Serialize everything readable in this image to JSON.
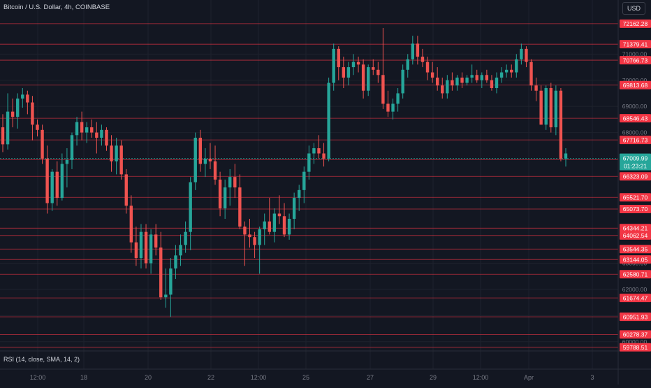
{
  "header": {
    "title": "Bitcoin / U.S. Dollar, 4h, COINBASE",
    "currency": "USD"
  },
  "rsi_label": "RSI (14, close, SMA, 14, 2)",
  "colors": {
    "background": "#131722",
    "up": "#26a69a",
    "down": "#ef5350",
    "level_line": "#f23645",
    "grid": "#1e222d",
    "axis_text": "#787b86"
  },
  "chart_data": {
    "type": "candlestick",
    "title": "Bitcoin / U.S. Dollar, 4h, COINBASE",
    "ylim": [
      59700,
      72400
    ],
    "y_ticks": [
      "71000.00",
      "70000.00",
      "69000.00",
      "68000.00",
      "63000.00",
      "62000.00",
      "61000.00",
      "60000.00"
    ],
    "x_ticks": [
      "12:00",
      "18",
      "20",
      "22",
      "12:00",
      "25",
      "27",
      "29",
      "12:00",
      "Apr",
      "3"
    ],
    "horizontal_levels": [
      "72162.28",
      "71379.41",
      "70766.73",
      "69813.68",
      "68546.43",
      "67716.73",
      "66961.83",
      "66323.09",
      "65521.70",
      "65073.70",
      "64344.21",
      "64062.54",
      "63544.35",
      "63144.05",
      "62580.71",
      "61674.47",
      "60951.93",
      "60278.37",
      "59788.51"
    ],
    "current_price": "67009.99",
    "countdown": "01:23:21",
    "candles": [
      [
        68200,
        68700,
        67250,
        67550
      ],
      [
        67550,
        69500,
        67350,
        68800
      ],
      [
        68800,
        69300,
        68200,
        68600
      ],
      [
        68600,
        69500,
        68150,
        69300
      ],
      [
        69300,
        69700,
        68950,
        69450
      ],
      [
        69450,
        69600,
        68700,
        69150
      ],
      [
        69150,
        69400,
        67700,
        68300
      ],
      [
        68300,
        68500,
        67850,
        68100
      ],
      [
        68100,
        68300,
        66800,
        67000
      ],
      [
        67000,
        67500,
        64900,
        65300
      ],
      [
        65300,
        66600,
        65000,
        66500
      ],
      [
        66500,
        66900,
        65200,
        65500
      ],
      [
        65500,
        67200,
        65400,
        66800
      ],
      [
        66800,
        67400,
        65900,
        66950
      ],
      [
        66950,
        68000,
        66600,
        67900
      ],
      [
        67900,
        68600,
        67500,
        68400
      ],
      [
        68400,
        68800,
        67700,
        68000
      ],
      [
        68000,
        68400,
        67600,
        68200
      ],
      [
        68200,
        68500,
        67800,
        68000
      ],
      [
        68000,
        68400,
        67200,
        67800
      ],
      [
        67800,
        68300,
        67500,
        68100
      ],
      [
        68100,
        68200,
        67300,
        67500
      ],
      [
        67500,
        67900,
        66500,
        66900
      ],
      [
        66900,
        67800,
        66400,
        67500
      ],
      [
        67500,
        67700,
        66200,
        66400
      ],
      [
        66400,
        66600,
        64900,
        65200
      ],
      [
        65200,
        65600,
        63400,
        63800
      ],
      [
        63800,
        64400,
        62900,
        63200
      ],
      [
        63200,
        64500,
        62800,
        64200
      ],
      [
        64200,
        64500,
        62800,
        63000
      ],
      [
        63000,
        64300,
        62600,
        64100
      ],
      [
        64100,
        64500,
        63300,
        63600
      ],
      [
        63600,
        64200,
        61600,
        61700
      ],
      [
        61700,
        62800,
        61300,
        61800
      ],
      [
        61800,
        63200,
        60950,
        62800
      ],
      [
        62800,
        63700,
        62400,
        63300
      ],
      [
        63300,
        64100,
        62900,
        63700
      ],
      [
        63700,
        64600,
        63400,
        64200
      ],
      [
        64200,
        66300,
        63500,
        66100
      ],
      [
        66100,
        68000,
        65800,
        67800
      ],
      [
        67800,
        68100,
        66500,
        66800
      ],
      [
        66800,
        67400,
        66300,
        67000
      ],
      [
        67000,
        67600,
        66600,
        66900
      ],
      [
        66900,
        67500,
        66000,
        66200
      ],
      [
        66200,
        66500,
        64800,
        65100
      ],
      [
        65100,
        66200,
        64700,
        65900
      ],
      [
        65900,
        66600,
        65200,
        66300
      ],
      [
        66300,
        66800,
        65500,
        65900
      ],
      [
        65900,
        66400,
        64300,
        64400
      ],
      [
        64400,
        64600,
        62900,
        64100
      ],
      [
        64100,
        64700,
        63600,
        64000
      ],
      [
        64000,
        64200,
        63200,
        63700
      ],
      [
        63700,
        64400,
        62600,
        64300
      ],
      [
        64300,
        64900,
        63700,
        64600
      ],
      [
        64600,
        65500,
        64100,
        64200
      ],
      [
        64200,
        65100,
        63800,
        64900
      ],
      [
        64900,
        65600,
        64500,
        64800
      ],
      [
        64800,
        65300,
        64000,
        64100
      ],
      [
        64100,
        64900,
        63900,
        64700
      ],
      [
        64700,
        65700,
        64300,
        65500
      ],
      [
        65500,
        66000,
        65000,
        65800
      ],
      [
        65800,
        66700,
        65300,
        66500
      ],
      [
        66500,
        67500,
        66200,
        67200
      ],
      [
        67200,
        67600,
        66800,
        67400
      ],
      [
        67400,
        67900,
        67000,
        67200
      ],
      [
        67200,
        67600,
        66700,
        67000
      ],
      [
        67000,
        70100,
        66900,
        69900
      ],
      [
        69900,
        71400,
        69600,
        71200
      ],
      [
        71200,
        71300,
        70000,
        70500
      ],
      [
        70500,
        70900,
        69700,
        70100
      ],
      [
        70100,
        70700,
        69800,
        70500
      ],
      [
        70500,
        71000,
        70200,
        70700
      ],
      [
        70700,
        70900,
        70300,
        70600
      ],
      [
        70600,
        70800,
        69300,
        69600
      ],
      [
        69600,
        70600,
        69400,
        70500
      ],
      [
        70500,
        70800,
        70200,
        70400
      ],
      [
        70400,
        70700,
        69900,
        70200
      ],
      [
        70200,
        72000,
        68900,
        69100
      ],
      [
        69100,
        69600,
        68600,
        68800
      ],
      [
        68800,
        69300,
        68500,
        69100
      ],
      [
        69100,
        69700,
        68800,
        69500
      ],
      [
        69500,
        70600,
        69300,
        70400
      ],
      [
        70400,
        71000,
        70100,
        70800
      ],
      [
        70800,
        71700,
        70600,
        71400
      ],
      [
        71400,
        71700,
        70600,
        70900
      ],
      [
        70900,
        71200,
        70500,
        70700
      ],
      [
        70700,
        70900,
        70000,
        70300
      ],
      [
        70300,
        70700,
        69900,
        70100
      ],
      [
        70100,
        70500,
        69600,
        69800
      ],
      [
        69800,
        70100,
        69300,
        69500
      ],
      [
        69500,
        70200,
        69300,
        70000
      ],
      [
        70000,
        70300,
        69600,
        69800
      ],
      [
        69800,
        70200,
        69600,
        70100
      ],
      [
        70100,
        70300,
        69700,
        69900
      ],
      [
        69900,
        70200,
        69800,
        70100
      ],
      [
        70100,
        70600,
        69900,
        70200
      ],
      [
        70200,
        70400,
        69900,
        70000
      ],
      [
        70000,
        70300,
        69700,
        70200
      ],
      [
        70200,
        70400,
        69900,
        70000
      ],
      [
        70000,
        70200,
        69600,
        69700
      ],
      [
        69700,
        70300,
        69500,
        70100
      ],
      [
        70100,
        70500,
        69900,
        70300
      ],
      [
        70300,
        70600,
        70100,
        70400
      ],
      [
        70400,
        70600,
        70100,
        70300
      ],
      [
        70300,
        71000,
        70100,
        70800
      ],
      [
        70800,
        71400,
        70600,
        71200
      ],
      [
        71200,
        71300,
        70500,
        70700
      ],
      [
        70700,
        70800,
        69600,
        69800
      ],
      [
        69800,
        70100,
        69200,
        69600
      ],
      [
        69600,
        69800,
        68300,
        68300
      ],
      [
        68300,
        69800,
        68100,
        69700
      ],
      [
        69700,
        69900,
        68000,
        68200
      ],
      [
        68200,
        69800,
        67900,
        69600
      ],
      [
        69600,
        69700,
        66900,
        67000
      ],
      [
        67000,
        67400,
        66700,
        67200
      ]
    ]
  }
}
